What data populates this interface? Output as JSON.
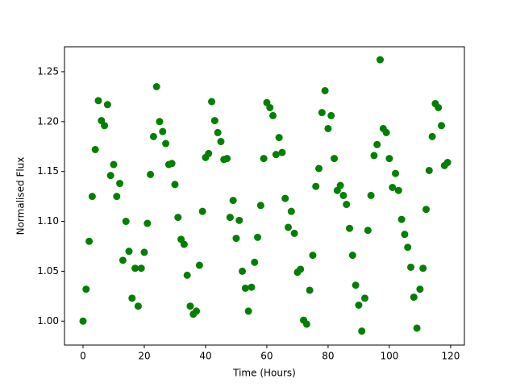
{
  "chart_data": {
    "type": "scatter",
    "xlabel": "Time (Hours)",
    "ylabel": "Normalised Flux",
    "color": "#008000",
    "series": [
      {
        "x": [
          0,
          1,
          2,
          3,
          4,
          5,
          6,
          7,
          8,
          9,
          10,
          11,
          12,
          13,
          14,
          15,
          16,
          17,
          18,
          19,
          20,
          21,
          22,
          23,
          24,
          25,
          26,
          27,
          28,
          29,
          30,
          31,
          32,
          33,
          34,
          35,
          36,
          37,
          38,
          39,
          40,
          41,
          42,
          43,
          44,
          45,
          46,
          47,
          48,
          49,
          50,
          51,
          52,
          53,
          54,
          55,
          56,
          57,
          58,
          59,
          60,
          61,
          62,
          63,
          64,
          65,
          66,
          67,
          68,
          69,
          70,
          71,
          72,
          73,
          74,
          75,
          76,
          77,
          78,
          79,
          80,
          81,
          82,
          83,
          84,
          85,
          86,
          87,
          88,
          89,
          90,
          91,
          92,
          93,
          94,
          95,
          96,
          97,
          98,
          99,
          100,
          101,
          102,
          103,
          104,
          105,
          106,
          107,
          108,
          109,
          110,
          111,
          112,
          113,
          114,
          115,
          116,
          117,
          118,
          119
        ],
        "values": [
          1.0,
          1.032,
          1.08,
          1.125,
          1.172,
          1.221,
          1.201,
          1.196,
          1.217,
          1.146,
          1.157,
          1.125,
          1.138,
          1.061,
          1.1,
          1.07,
          1.023,
          1.053,
          1.015,
          1.053,
          1.069,
          1.098,
          1.147,
          1.185,
          1.235,
          1.2,
          1.19,
          1.178,
          1.157,
          1.158,
          1.137,
          1.104,
          1.082,
          1.077,
          1.046,
          1.015,
          1.007,
          1.01,
          1.056,
          1.11,
          1.164,
          1.168,
          1.22,
          1.201,
          1.189,
          1.18,
          1.162,
          1.163,
          1.104,
          1.121,
          1.083,
          1.101,
          1.05,
          1.033,
          1.01,
          1.034,
          1.059,
          1.084,
          1.116,
          1.163,
          1.219,
          1.214,
          1.206,
          1.167,
          1.184,
          1.169,
          1.123,
          1.094,
          1.11,
          1.088,
          1.049,
          1.052,
          1.001,
          0.997,
          1.031,
          1.066,
          1.135,
          1.153,
          1.209,
          1.231,
          1.193,
          1.206,
          1.163,
          1.131,
          1.136,
          1.126,
          1.117,
          1.093,
          1.066,
          1.036,
          1.016,
          0.99,
          1.023,
          1.091,
          1.126,
          1.166,
          1.177,
          1.262,
          1.193,
          1.189,
          1.163,
          1.134,
          1.148,
          1.131,
          1.102,
          1.087,
          1.074,
          1.054,
          1.024,
          0.993,
          1.032,
          1.053,
          1.112,
          1.151,
          1.185,
          1.218,
          1.214,
          1.196,
          1.156,
          1.159
        ]
      }
    ],
    "xlim": [
      -6.05,
      124.5
    ],
    "ylim": [
      0.976,
      1.275
    ],
    "xticks": [
      0,
      20,
      40,
      60,
      80,
      100,
      120
    ],
    "yticks": [
      {
        "value": 1,
        "label": "1.00"
      },
      1.05,
      {
        "value": 1.1,
        "label": "1.10"
      },
      1.15,
      {
        "value": 1.2,
        "label": "1.20"
      },
      1.25
    ]
  }
}
